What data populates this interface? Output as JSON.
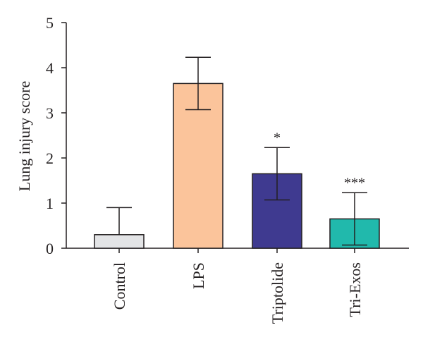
{
  "chart_data": {
    "type": "bar",
    "title": "",
    "xlabel": "",
    "ylabel": "Lung injury score",
    "ylim": [
      0,
      5
    ],
    "yticks": [
      0,
      1,
      2,
      3,
      4,
      5
    ],
    "grid": false,
    "categories": [
      "Control",
      "LPS",
      "Triptolide",
      "Tri-Exos"
    ],
    "values": [
      0.3,
      3.65,
      1.65,
      0.65
    ],
    "errors": [
      0.6,
      0.58,
      0.58,
      0.58
    ],
    "significance": [
      "",
      "",
      "*",
      "***"
    ],
    "colors": [
      "#e3e4e6",
      "#fbc49b",
      "#3f3a90",
      "#21b9ac"
    ]
  }
}
